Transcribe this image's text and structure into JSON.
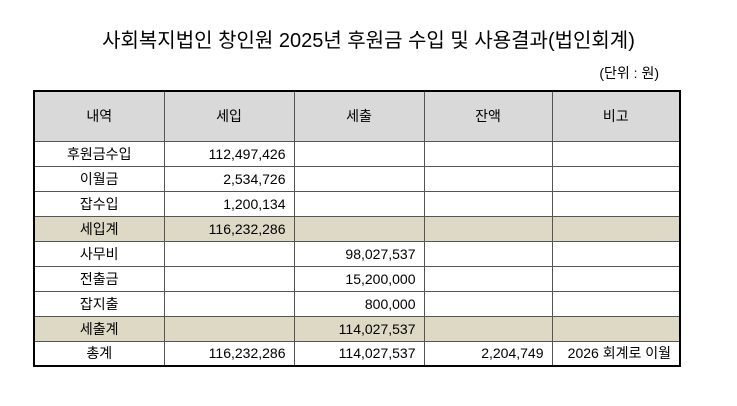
{
  "header": {
    "title": "사회복지법인 창인원 2025년 후원금 수입 및 사용결과(법인회계)",
    "unit": "(단위 : 원)"
  },
  "table": {
    "columns": [
      "내역",
      "세입",
      "세출",
      "잔액",
      "비고"
    ],
    "rows": [
      [
        "후원금수입",
        "112,497,426",
        null,
        null,
        null
      ],
      [
        "이월금",
        "2,534,726",
        null,
        null,
        null
      ],
      [
        "잡수입",
        "1,200,134",
        null,
        null,
        null
      ],
      [
        "세입계",
        "116,232,286",
        null,
        null,
        null
      ],
      [
        "사무비",
        null,
        "98,027,537",
        null,
        null
      ],
      [
        "전출금",
        null,
        "15,200,000",
        null,
        null
      ],
      [
        "잡지출",
        null,
        "800,000",
        null,
        null
      ],
      [
        "세출계",
        null,
        "114,027,537",
        null,
        null
      ],
      [
        "총계",
        "116,232,286",
        "114,027,537",
        "2,204,749",
        "2026 회계로 이월"
      ]
    ]
  }
}
